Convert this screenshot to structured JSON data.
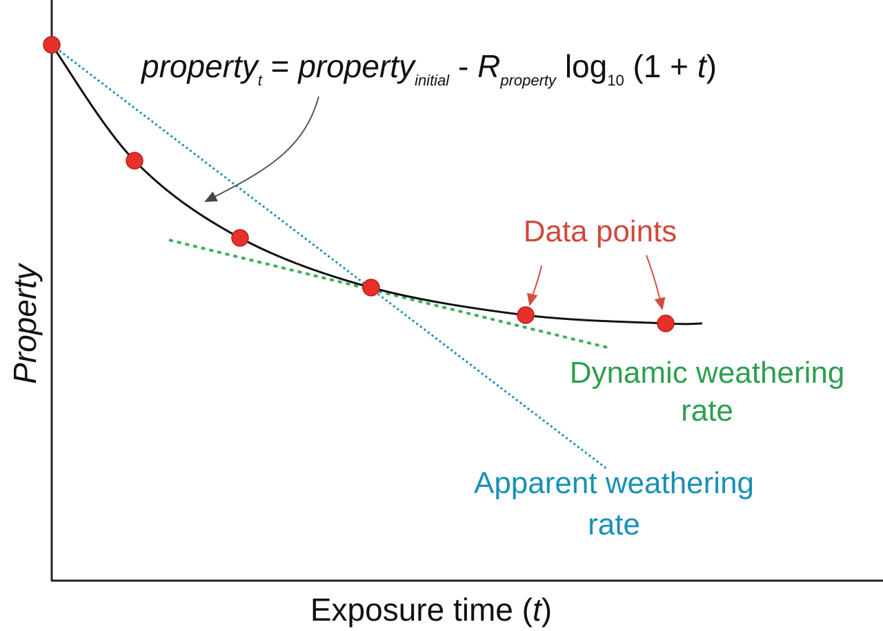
{
  "formula": [
    {
      "text": "property",
      "style": "italic"
    },
    {
      "text": "t",
      "style": "italic-sub"
    },
    {
      "text": " = ",
      "style": "normal"
    },
    {
      "text": "property",
      "style": "italic"
    },
    {
      "text": "initial",
      "style": "italic-sub"
    },
    {
      "text": " - ",
      "style": "normal"
    },
    {
      "text": "R",
      "style": "italic"
    },
    {
      "text": "property",
      "style": "italic-sub"
    },
    {
      "text": " log",
      "style": "normal"
    },
    {
      "text": "10",
      "style": "sub"
    },
    {
      "text": " (1 + ",
      "style": "normal"
    },
    {
      "text": "t",
      "style": "italic"
    },
    {
      "text": ")",
      "style": "normal"
    }
  ],
  "annotations": {
    "data_points": "Data points",
    "dynamic": [
      "Dynamic weathering",
      "rate"
    ],
    "apparent": [
      "Apparent weathering",
      "rate"
    ]
  },
  "axes": {
    "y_label": "Property",
    "x_label": [
      {
        "text": "Exposure time (",
        "style": "normal"
      },
      {
        "text": "t",
        "style": "italic"
      },
      {
        "text": ")",
        "style": "normal"
      }
    ]
  }
}
